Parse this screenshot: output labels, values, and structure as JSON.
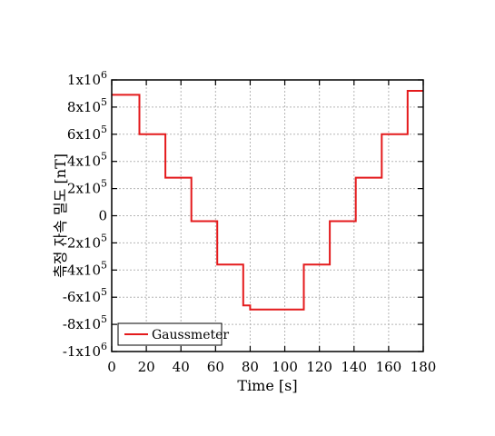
{
  "chart_data": {
    "type": "line",
    "xlabel": "Time [s]",
    "ylabel": "측정 자속 밀도 [nT]",
    "xlim": [
      0,
      180
    ],
    "ylim": [
      -1000000,
      1000000
    ],
    "x_ticks": [
      0,
      20,
      40,
      60,
      80,
      100,
      120,
      140,
      160,
      180
    ],
    "x_tick_labels": [
      "0",
      "20",
      "40",
      "60",
      "80",
      "100",
      "120",
      "140",
      "160",
      "180"
    ],
    "y_ticks": [
      1000000,
      800000,
      600000,
      400000,
      200000,
      0,
      -200000,
      -400000,
      -600000,
      -800000,
      -1000000
    ],
    "y_tick_labels": [
      {
        "mant": "1x10",
        "exp": "6"
      },
      {
        "mant": "8x10",
        "exp": "5"
      },
      {
        "mant": "6x10",
        "exp": "5"
      },
      {
        "mant": "4x10",
        "exp": "5"
      },
      {
        "mant": "2x10",
        "exp": "5"
      },
      {
        "mant": "0",
        "exp": ""
      },
      {
        "mant": "-2x10",
        "exp": "5"
      },
      {
        "mant": "-4x10",
        "exp": "5"
      },
      {
        "mant": "-6x10",
        "exp": "5"
      },
      {
        "mant": "-8x10",
        "exp": "5"
      },
      {
        "mant": "-1x10",
        "exp": "6"
      }
    ],
    "grid": true,
    "legend_position": "bottom-left",
    "series": [
      {
        "name": "Gaussmeter",
        "color": "#e41a1c",
        "x": [
          0,
          16,
          16,
          31,
          31,
          46,
          46,
          61,
          61,
          76,
          76,
          80,
          80,
          111,
          111,
          126,
          126,
          141,
          141,
          156,
          156,
          171,
          171,
          180
        ],
        "y": [
          890000,
          890000,
          600000,
          600000,
          280000,
          280000,
          -40000,
          -40000,
          -360000,
          -360000,
          -660000,
          -660000,
          -690000,
          -690000,
          -360000,
          -360000,
          -40000,
          -40000,
          280000,
          280000,
          600000,
          600000,
          920000,
          920000
        ]
      }
    ]
  }
}
